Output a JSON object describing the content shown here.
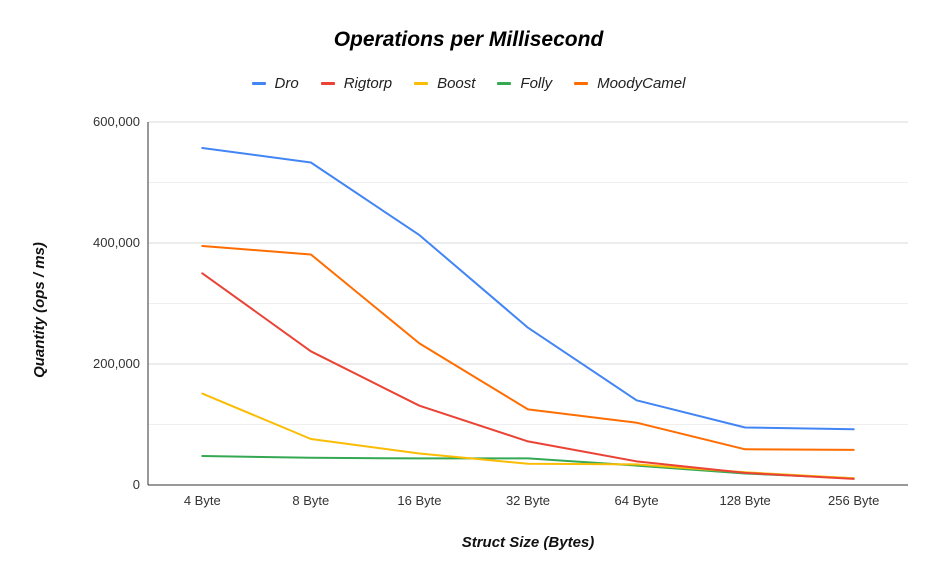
{
  "chart_data": {
    "type": "line",
    "title": "Operations per Millisecond",
    "xlabel": "Struct Size (Bytes)",
    "ylabel": "Quantity (ops / ms)",
    "categories": [
      "4 Byte",
      "8 Byte",
      "16 Byte",
      "32 Byte",
      "64 Byte",
      "128 Byte",
      "256 Byte"
    ],
    "ylim": [
      0,
      600000
    ],
    "yticks": [
      0,
      200000,
      400000,
      600000
    ],
    "ytick_labels": [
      "0",
      "200,000",
      "400,000",
      "600,000"
    ],
    "grid": true,
    "legend_position": "top",
    "series": [
      {
        "name": "Dro",
        "color": "#4285F4",
        "values": [
          557000,
          533000,
          413000,
          260000,
          140000,
          95000,
          92000
        ]
      },
      {
        "name": "Rigtorp",
        "color": "#EA4335",
        "values": [
          350000,
          221000,
          131000,
          72000,
          39000,
          20000,
          10000
        ]
      },
      {
        "name": "Boost",
        "color": "#FBBC04",
        "values": [
          151000,
          76000,
          52000,
          35000,
          34000,
          21000,
          11000
        ]
      },
      {
        "name": "Folly",
        "color": "#34A853",
        "values": [
          48000,
          45000,
          44000,
          44000,
          32000,
          19000,
          11000
        ]
      },
      {
        "name": "MoodyCamel",
        "color": "#FF6D01",
        "values": [
          395000,
          381000,
          234000,
          125000,
          103000,
          59000,
          58000
        ]
      }
    ]
  }
}
